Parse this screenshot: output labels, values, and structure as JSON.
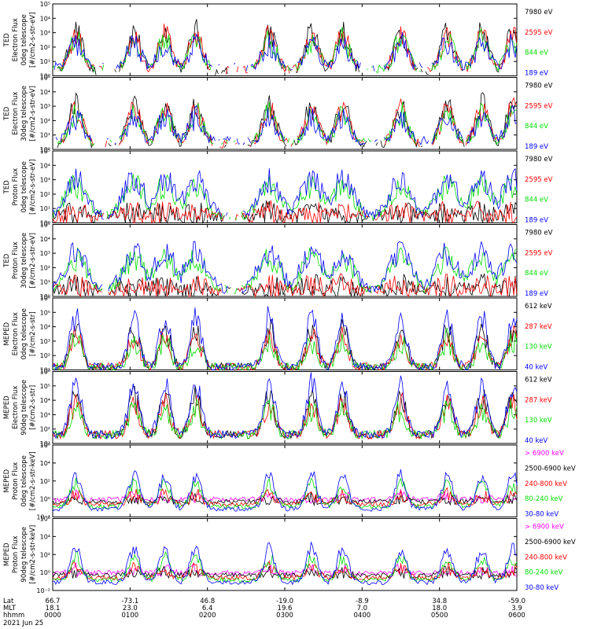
{
  "chart_data": {
    "type": "line",
    "x_ticks": [
      "0000",
      "0100",
      "0200",
      "0300",
      "0400",
      "0500",
      "0600"
    ],
    "y_tick_labels": [
      "10⁻²",
      "10⁰",
      "10²",
      "10⁴",
      "10⁶"
    ],
    "panels": [
      {
        "ylabel": [
          "TED",
          "Electron Flux",
          "0deg telescope",
          "[#/cm2-s-str-eV]"
        ],
        "ymin_exp": 0,
        "ymax_exp": 5,
        "y_tick_labels": [
          "10⁰",
          "10¹",
          "10²",
          "10³",
          "10⁴",
          "10⁵"
        ],
        "series": [
          {
            "name": "7980 eV",
            "color": "#000000"
          },
          {
            "name": "2595 eV",
            "color": "#ff0000"
          },
          {
            "name": "844 eV",
            "color": "#00dd00"
          },
          {
            "name": "189 eV",
            "color": "#0000ff"
          }
        ]
      },
      {
        "ylabel": [
          "TED",
          "Electron Flux",
          "30deg telescope",
          "[#/cm2-s-str-eV]"
        ],
        "ymin_exp": 0,
        "ymax_exp": 5,
        "y_tick_labels": [
          "10⁰",
          "10¹",
          "10²",
          "10³",
          "10⁴",
          "10⁵"
        ],
        "series": [
          {
            "name": "7980 eV",
            "color": "#000000"
          },
          {
            "name": "2595 eV",
            "color": "#ff0000"
          },
          {
            "name": "844 eV",
            "color": "#00dd00"
          },
          {
            "name": "189 eV",
            "color": "#0000ff"
          }
        ]
      },
      {
        "ylabel": [
          "TED",
          "Proton Flux",
          "0deg telescope",
          "[#/cm2-s-str-eV]"
        ],
        "ymin_exp": 0,
        "ymax_exp": 5,
        "y_tick_labels": [
          "10⁰",
          "10¹",
          "10²",
          "10³",
          "10⁴",
          "10⁵"
        ],
        "series": [
          {
            "name": "7980 eV",
            "color": "#000000"
          },
          {
            "name": "2595 eV",
            "color": "#ff0000"
          },
          {
            "name": "844 eV",
            "color": "#00dd00"
          },
          {
            "name": "189 eV",
            "color": "#0000ff"
          }
        ]
      },
      {
        "ylabel": [
          "TED",
          "Proton Flux",
          "30deg telescope",
          "[#/cm2-s-str-eV]"
        ],
        "ymin_exp": 0,
        "ymax_exp": 5,
        "y_tick_labels": [
          "10⁰",
          "10¹",
          "10²",
          "10³",
          "10⁴",
          "10⁵"
        ],
        "series": [
          {
            "name": "7980 eV",
            "color": "#000000"
          },
          {
            "name": "2595 eV",
            "color": "#ff0000"
          },
          {
            "name": "844 eV",
            "color": "#00dd00"
          },
          {
            "name": "189 eV",
            "color": "#0000ff"
          }
        ]
      },
      {
        "ylabel": [
          "MEPED",
          "Electron Flux",
          "0deg telescope",
          "[#/cm2-s-str]"
        ],
        "ymin_exp": 1,
        "ymax_exp": 6,
        "y_tick_labels": [
          "10¹",
          "10²",
          "10³",
          "10⁴",
          "10⁵",
          "10⁶"
        ],
        "series": [
          {
            "name": "612 keV",
            "color": "#000000"
          },
          {
            "name": "287 keV",
            "color": "#ff0000"
          },
          {
            "name": "130 keV",
            "color": "#00dd00"
          },
          {
            "name": "40 keV",
            "color": "#0000ff"
          }
        ]
      },
      {
        "ylabel": [
          "MEPED",
          "Electron Flux",
          "90deg telescope",
          "[#/cm2-s-str]"
        ],
        "ymin_exp": 1,
        "ymax_exp": 6,
        "y_tick_labels": [
          "10¹",
          "10²",
          "10³",
          "10⁴",
          "10⁵",
          "10⁶"
        ],
        "series": [
          {
            "name": "612 keV",
            "color": "#000000"
          },
          {
            "name": "287 keV",
            "color": "#ff0000"
          },
          {
            "name": "130 keV",
            "color": "#00dd00"
          },
          {
            "name": "40 keV",
            "color": "#0000ff"
          }
        ]
      },
      {
        "ylabel": [
          "MEPED",
          "Proton Flux",
          "0deg telescope",
          "[#/cm2-s-str-keV]"
        ],
        "ymin_exp": -3,
        "ymax_exp": 6,
        "y_tick_labels": [
          "10⁻²",
          "10⁰",
          "10²",
          "10⁴",
          "10⁶"
        ],
        "series": [
          {
            "name": "> 6900 keV",
            "color": "#ff00ff"
          },
          {
            "name": "2500-6900 keV",
            "color": "#000000"
          },
          {
            "name": "240-800 keV",
            "color": "#ff0000"
          },
          {
            "name": "80-240 keV",
            "color": "#00dd00"
          },
          {
            "name": "30-80 keV",
            "color": "#0000ff"
          }
        ]
      },
      {
        "ylabel": [
          "MEPED",
          "Proton Flux",
          "90deg telescope",
          "[#/cm2-s-str-keV]"
        ],
        "ymin_exp": -3,
        "ymax_exp": 6,
        "y_tick_labels": [
          "10⁻²",
          "10⁰",
          "10²",
          "10⁴",
          "10⁶"
        ],
        "series": [
          {
            "name": "> 6900 keV",
            "color": "#ff00ff"
          },
          {
            "name": "2500-6900 keV",
            "color": "#000000"
          },
          {
            "name": "240-800 keV",
            "color": "#ff0000"
          },
          {
            "name": "80-240 keV",
            "color": "#00dd00"
          },
          {
            "name": "30-80 keV",
            "color": "#0000ff"
          }
        ]
      }
    ],
    "bottom_axis": {
      "row_labels": [
        "Lat",
        "MLT",
        "hhmm"
      ],
      "columns": [
        [
          "66.7",
          "18.1",
          "0000"
        ],
        [
          "-73.1",
          "23.0",
          "0100"
        ],
        [
          "46.8",
          "6.4",
          "0200"
        ],
        [
          "-19.0",
          "19.6",
          "0300"
        ],
        [
          "-8.9",
          "7.0",
          "0400"
        ],
        [
          "34.8",
          "18.0",
          "0500"
        ],
        [
          "-59.0",
          "3.9",
          "0600"
        ]
      ],
      "date": "2021 Jun 25"
    }
  }
}
